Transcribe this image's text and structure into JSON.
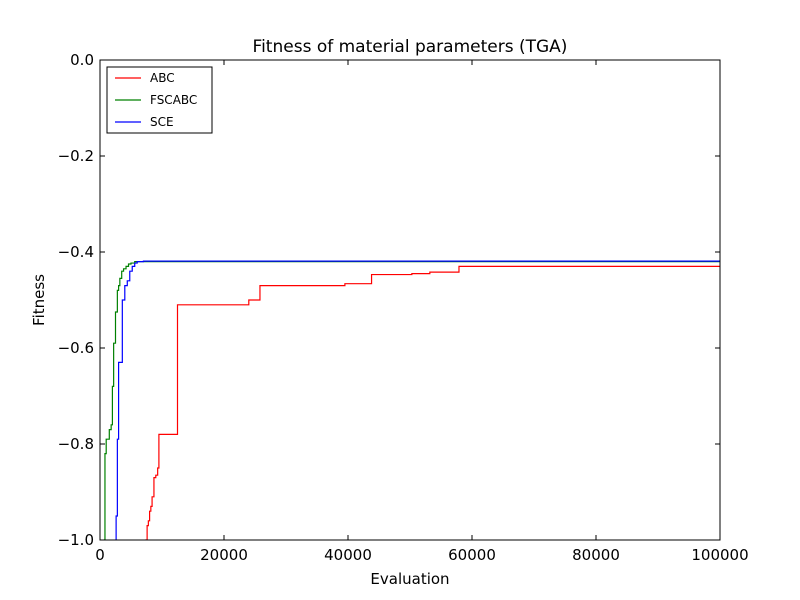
{
  "chart_data": {
    "type": "line",
    "title": "Fitness of material parameters (TGA)",
    "xlabel": "Evaluation",
    "ylabel": "Fitness",
    "xlim": [
      0,
      100000
    ],
    "ylim": [
      -1.0,
      0.0
    ],
    "xticks": [
      0,
      20000,
      40000,
      60000,
      80000,
      100000
    ],
    "xtick_labels": [
      "0",
      "20000",
      "40000",
      "60000",
      "80000",
      "100000"
    ],
    "yticks": [
      0.0,
      -0.2,
      -0.4,
      -0.6,
      -0.8,
      -1.0
    ],
    "ytick_labels": [
      "0.0",
      "−0.2",
      "−0.4",
      "−0.6",
      "−0.8",
      "−1.0"
    ],
    "grid": false,
    "legend_position": "top-left",
    "step": true,
    "series": [
      {
        "name": "ABC",
        "color": "#ff0000",
        "x": [
          7400,
          7600,
          7800,
          8000,
          8200,
          8400,
          8700,
          9000,
          9300,
          9500,
          9700,
          12500,
          24000,
          25800,
          39200,
          39500,
          43500,
          43800,
          50300,
          53200,
          57900,
          100000
        ],
        "y": [
          -1.0,
          -0.97,
          -0.96,
          -0.94,
          -0.93,
          -0.91,
          -0.87,
          -0.865,
          -0.85,
          -0.78,
          -0.78,
          -0.51,
          -0.5,
          -0.47,
          -0.47,
          -0.466,
          -0.466,
          -0.447,
          -0.445,
          -0.442,
          -0.43,
          -0.43
        ]
      },
      {
        "name": "FSCABC",
        "color": "#008000",
        "x": [
          700,
          800,
          1000,
          1500,
          1800,
          2000,
          2200,
          2500,
          2800,
          3000,
          3200,
          3500,
          3800,
          4200,
          4600,
          5000,
          5600,
          6500,
          100000
        ],
        "y": [
          -1.0,
          -0.82,
          -0.79,
          -0.77,
          -0.76,
          -0.68,
          -0.59,
          -0.525,
          -0.48,
          -0.47,
          -0.455,
          -0.44,
          -0.435,
          -0.43,
          -0.425,
          -0.423,
          -0.42,
          -0.42,
          -0.42
        ]
      },
      {
        "name": "SCE",
        "color": "#0000ff",
        "x": [
          2600,
          2800,
          3000,
          3300,
          3600,
          4000,
          4400,
          4800,
          5200,
          5600,
          6000,
          7000,
          100000
        ],
        "y": [
          -0.95,
          -0.79,
          -0.63,
          -0.63,
          -0.5,
          -0.47,
          -0.46,
          -0.44,
          -0.43,
          -0.423,
          -0.42,
          -0.419,
          -0.418
        ]
      }
    ]
  }
}
